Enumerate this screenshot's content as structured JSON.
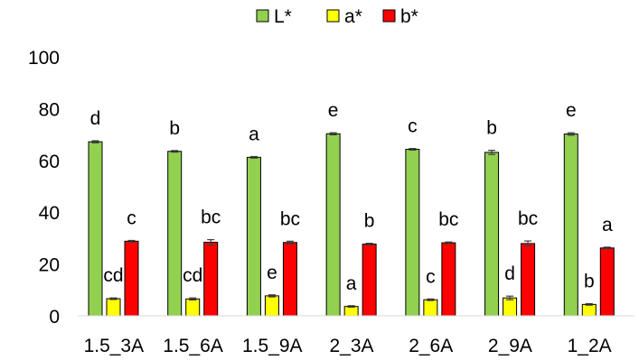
{
  "chart_data": {
    "type": "bar",
    "title": "",
    "xlabel": "",
    "ylabel": "",
    "ylim": [
      0,
      100
    ],
    "yticks": [
      0,
      20,
      40,
      60,
      80,
      100
    ],
    "grid": false,
    "legend_position": "top-center",
    "categories": [
      "1.5_3A",
      "1.5_6A",
      "1.5_9A",
      "2_3A",
      "2_6A",
      "2_9A",
      "1_2A"
    ],
    "series": [
      {
        "name": "L*",
        "color": "#92D050",
        "values": [
          67.2,
          63.5,
          61.2,
          70.3,
          64.3,
          63.1,
          70.2
        ],
        "errors": [
          0.4,
          0.3,
          0.3,
          0.4,
          0.3,
          0.8,
          0.5
        ],
        "letters": [
          "d",
          "b",
          "a",
          "e",
          "c",
          "b",
          "e"
        ]
      },
      {
        "name": "a*",
        "color": "#FFFF00",
        "values": [
          6.6,
          6.5,
          7.7,
          3.6,
          6.2,
          6.9,
          4.4
        ],
        "errors": [
          0.3,
          0.4,
          0.4,
          0.3,
          0.3,
          0.7,
          0.3
        ],
        "letters": [
          "cd",
          "cd",
          "e",
          "a",
          "c",
          "d",
          "b"
        ]
      },
      {
        "name": "b*",
        "color": "#FF0000",
        "values": [
          28.8,
          28.4,
          28.3,
          27.7,
          28.2,
          27.9,
          26.2
        ],
        "errors": [
          0.3,
          1.0,
          0.5,
          0.3,
          0.3,
          1.0,
          0.3
        ],
        "letters": [
          "c",
          "bc",
          "bc",
          "b",
          "bc",
          "bc",
          "a"
        ]
      }
    ]
  }
}
